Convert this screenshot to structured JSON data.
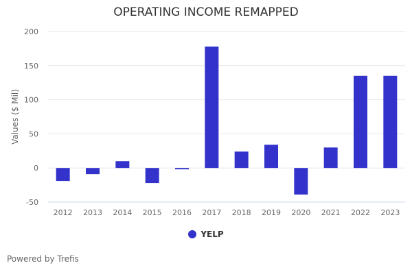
{
  "chart_data": {
    "type": "bar",
    "title": "OPERATING INCOME REMAPPED",
    "xlabel": "",
    "ylabel": "Values ($ Mil)",
    "categories": [
      "2012",
      "2013",
      "2014",
      "2015",
      "2016",
      "2017",
      "2018",
      "2019",
      "2020",
      "2021",
      "2022",
      "2023"
    ],
    "series": [
      {
        "name": "YELP",
        "values": [
          -19,
          -9,
          10,
          -22,
          -2,
          178,
          24,
          34,
          -39,
          30,
          135,
          135
        ]
      }
    ],
    "ylim": [
      -50,
      200
    ],
    "yticks": [
      -50,
      0,
      50,
      100,
      150,
      200
    ],
    "grid": true,
    "legend": "bottom",
    "color": "#3333cc"
  },
  "credit": "Powered by Trefis"
}
